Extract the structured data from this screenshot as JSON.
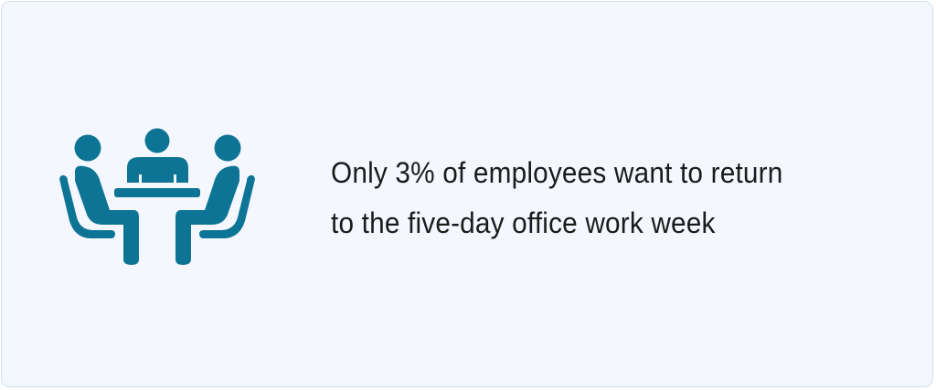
{
  "icon": {
    "name": "meeting-table-icon",
    "color": "#0e7496"
  },
  "headline": {
    "line1": "Only 3% of employees want to return",
    "line2": "to the five-day office work week"
  },
  "colors": {
    "background": "#f4f8fe",
    "border": "#cfe2ef",
    "text": "#1b1b1b"
  }
}
